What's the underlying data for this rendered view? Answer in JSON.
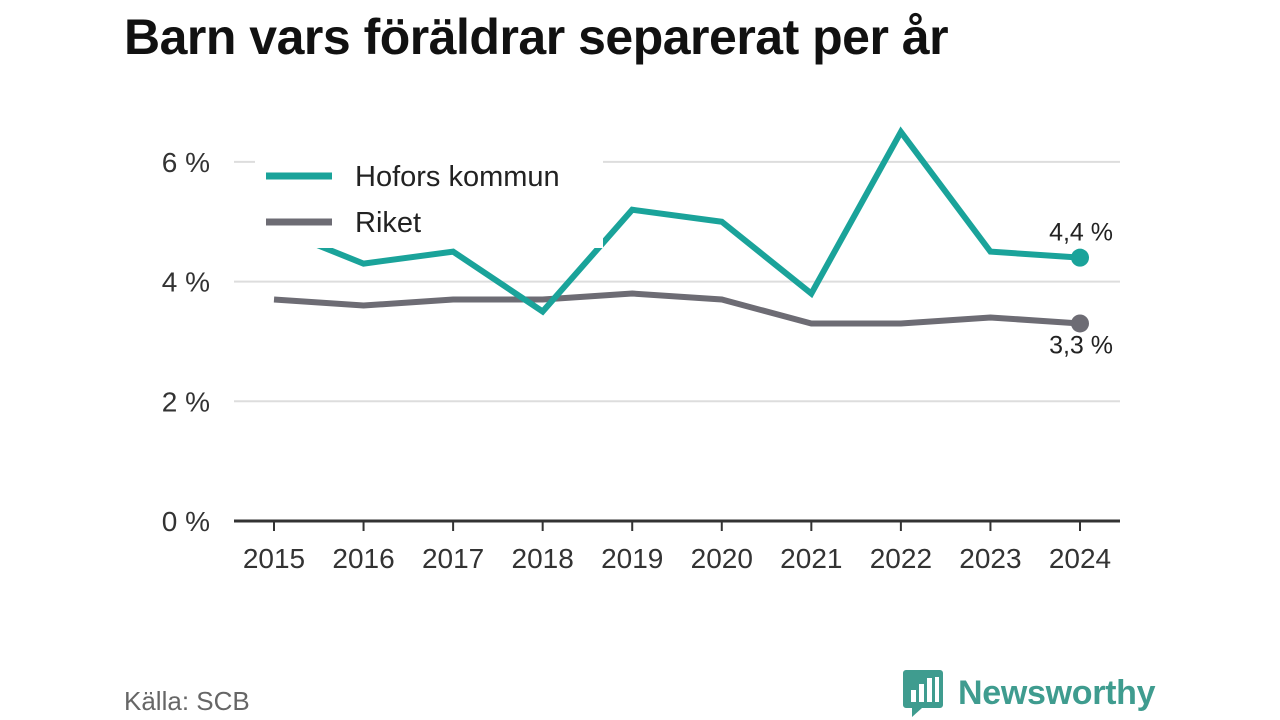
{
  "chart_data": {
    "type": "line",
    "title": "Barn vars föräldrar separerat per år",
    "categories": [
      "2015",
      "2016",
      "2017",
      "2018",
      "2019",
      "2020",
      "2021",
      "2022",
      "2023",
      "2024"
    ],
    "series": [
      {
        "name": "Hofors kommun",
        "color": "#1aa39a",
        "values": [
          4.9,
          4.3,
          4.5,
          3.5,
          5.2,
          5.0,
          3.8,
          6.5,
          4.5,
          4.4
        ],
        "end_label": "4,4 %"
      },
      {
        "name": "Riket",
        "color": "#6d6c74",
        "values": [
          3.7,
          3.6,
          3.7,
          3.7,
          3.8,
          3.7,
          3.3,
          3.3,
          3.4,
          3.3
        ],
        "end_label": "3,3 %"
      }
    ],
    "ylim": [
      0,
      7
    ],
    "yticks": [
      0,
      2,
      4,
      6
    ],
    "ytick_labels": [
      "0 %",
      "2 %",
      "4 %",
      "6 %"
    ],
    "grid": true,
    "legend_position": "top-left"
  },
  "footer": {
    "source": "Källa: SCB",
    "brand": "Newsworthy",
    "brand_color": "#3f9c8f",
    "brand_icon": "bar-chart-speech-bubble-icon"
  }
}
